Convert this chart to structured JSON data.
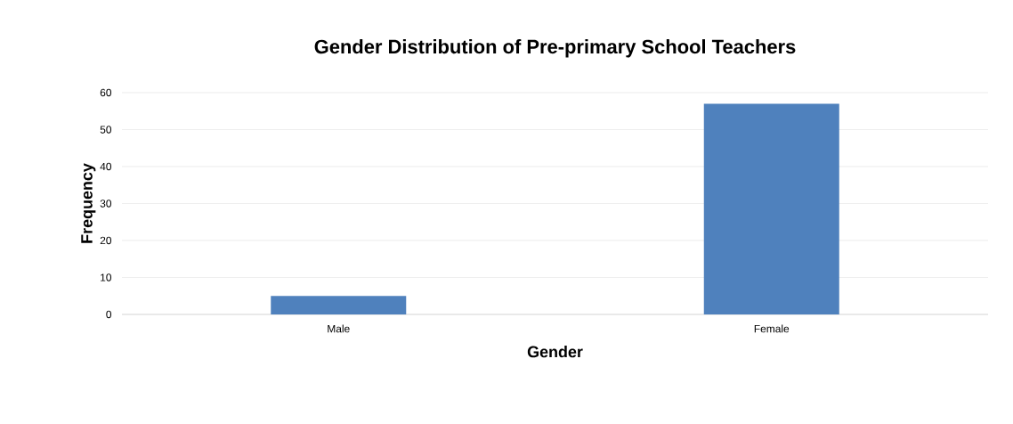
{
  "chart_data": {
    "type": "bar",
    "title": "Gender Distribution of Pre-primary School Teachers",
    "xlabel": "Gender",
    "ylabel": "Frequency",
    "categories": [
      "Male",
      "Female"
    ],
    "values": [
      5,
      57
    ],
    "color": "#4f81bd",
    "ylim": [
      0,
      60
    ],
    "yticks": [
      0,
      10,
      20,
      30,
      40,
      50,
      60
    ],
    "grid": "y"
  }
}
